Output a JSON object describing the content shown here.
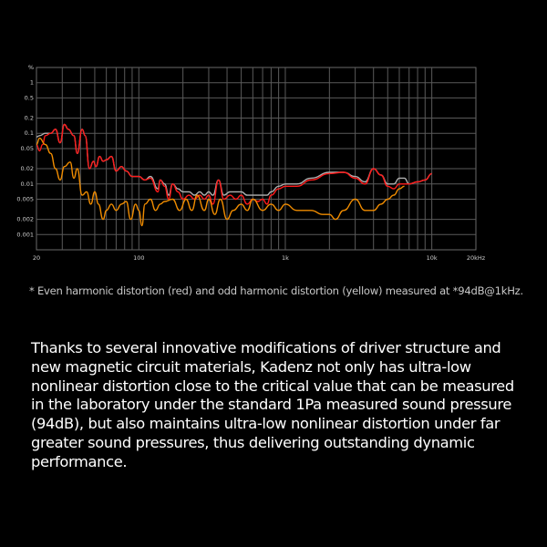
{
  "chart_data": {
    "type": "line",
    "title": "",
    "xlabel": "",
    "ylabel": "%",
    "x_scale": "log",
    "y_scale": "log",
    "xlim": [
      20,
      20000
    ],
    "ylim": [
      0.0005,
      2
    ],
    "grid": true,
    "x_ticks": [
      {
        "v": 20,
        "label": "20"
      },
      {
        "v": 100,
        "label": "100"
      },
      {
        "v": 1000,
        "label": "1k"
      },
      {
        "v": 10000,
        "label": "10k"
      },
      {
        "v": 20000,
        "label": "20kHz"
      }
    ],
    "y_ticks": [
      {
        "v": 1,
        "label": "1"
      },
      {
        "v": 0.5,
        "label": "0.5"
      },
      {
        "v": 0.2,
        "label": "0.2"
      },
      {
        "v": 0.1,
        "label": "0.1"
      },
      {
        "v": 0.05,
        "label": "0.05"
      },
      {
        "v": 0.02,
        "label": "0.02"
      },
      {
        "v": 0.01,
        "label": "0.01"
      },
      {
        "v": 0.005,
        "label": "0.005"
      },
      {
        "v": 0.002,
        "label": "0.002"
      },
      {
        "v": 0.001,
        "label": "0.001"
      }
    ],
    "y_unit_label": "%",
    "series": [
      {
        "color": "#b0b0b0",
        "x": [
          20,
          21,
          23,
          25,
          27,
          29,
          31,
          33,
          36,
          38,
          41,
          43,
          46,
          49,
          51,
          54,
          57,
          60,
          65,
          70,
          76,
          82,
          90,
          100,
          110,
          120,
          135,
          140,
          150,
          160,
          170,
          185,
          200,
          220,
          240,
          260,
          280,
          300,
          320,
          350,
          380,
          420,
          460,
          500,
          550,
          600,
          650,
          700,
          750,
          800,
          900,
          1000,
          1200,
          1500,
          2000,
          2500,
          3000,
          3500,
          4000,
          4500,
          5000,
          5500,
          6000,
          6500,
          7000,
          8000,
          9000,
          10000
        ],
        "y": [
          0.085,
          0.09,
          0.1,
          0.1,
          0.12,
          0.065,
          0.15,
          0.12,
          0.09,
          0.04,
          0.12,
          0.09,
          0.02,
          0.028,
          0.022,
          0.035,
          0.028,
          0.03,
          0.035,
          0.018,
          0.022,
          0.018,
          0.014,
          0.014,
          0.012,
          0.014,
          0.008,
          0.012,
          0.01,
          0.006,
          0.01,
          0.008,
          0.007,
          0.007,
          0.006,
          0.007,
          0.006,
          0.007,
          0.006,
          0.012,
          0.006,
          0.007,
          0.007,
          0.007,
          0.006,
          0.006,
          0.006,
          0.006,
          0.006,
          0.007,
          0.009,
          0.01,
          0.01,
          0.013,
          0.017,
          0.017,
          0.014,
          0.011,
          0.02,
          0.015,
          0.01,
          0.01,
          0.013,
          0.013,
          0.01,
          0.011,
          0.012,
          0.016
        ]
      },
      {
        "color": "#ff1a1a",
        "x": [
          20,
          21,
          22,
          23,
          25,
          27,
          29,
          31,
          33,
          36,
          38,
          41,
          43,
          46,
          49,
          51,
          54,
          57,
          60,
          65,
          70,
          76,
          82,
          90,
          100,
          110,
          120,
          135,
          140,
          150,
          160,
          170,
          185,
          200,
          220,
          240,
          260,
          280,
          300,
          320,
          350,
          380,
          420,
          460,
          500,
          550,
          600,
          650,
          700,
          750,
          800,
          900,
          1000,
          1200,
          1500,
          2000,
          2500,
          3000,
          3500,
          4000,
          4500,
          5000,
          5500,
          6000,
          7000,
          8000,
          9000,
          10000
        ],
        "y": [
          0.06,
          0.045,
          0.06,
          0.09,
          0.1,
          0.12,
          0.065,
          0.15,
          0.12,
          0.09,
          0.04,
          0.12,
          0.09,
          0.02,
          0.028,
          0.022,
          0.035,
          0.028,
          0.03,
          0.035,
          0.018,
          0.022,
          0.018,
          0.014,
          0.014,
          0.012,
          0.013,
          0.007,
          0.012,
          0.009,
          0.005,
          0.01,
          0.007,
          0.005,
          0.006,
          0.005,
          0.006,
          0.005,
          0.006,
          0.004,
          0.012,
          0.005,
          0.006,
          0.005,
          0.006,
          0.004,
          0.005,
          0.0045,
          0.005,
          0.004,
          0.006,
          0.008,
          0.009,
          0.009,
          0.012,
          0.016,
          0.017,
          0.013,
          0.01,
          0.02,
          0.015,
          0.009,
          0.008,
          0.01,
          0.01,
          0.011,
          0.012,
          0.016
        ]
      },
      {
        "color": "#f08c00",
        "x": [
          20,
          21,
          23,
          25,
          27,
          29,
          31,
          34,
          36,
          38,
          41,
          44,
          47,
          50,
          53,
          57,
          60,
          65,
          70,
          76,
          82,
          88,
          95,
          100,
          105,
          110,
          120,
          130,
          140,
          150,
          170,
          190,
          210,
          230,
          250,
          280,
          300,
          330,
          360,
          400,
          440,
          500,
          550,
          600,
          700,
          800,
          900,
          1000,
          1200,
          1500,
          1800,
          2000,
          2200,
          2500,
          3000,
          3500,
          4000,
          4500,
          5000,
          5500,
          6000,
          6500
        ],
        "y": [
          0.06,
          0.08,
          0.06,
          0.04,
          0.02,
          0.012,
          0.022,
          0.027,
          0.013,
          0.02,
          0.006,
          0.007,
          0.004,
          0.007,
          0.004,
          0.002,
          0.003,
          0.004,
          0.003,
          0.004,
          0.0045,
          0.002,
          0.004,
          0.003,
          0.0015,
          0.004,
          0.005,
          0.003,
          0.004,
          0.0045,
          0.005,
          0.003,
          0.005,
          0.003,
          0.006,
          0.003,
          0.005,
          0.0025,
          0.005,
          0.002,
          0.003,
          0.004,
          0.003,
          0.005,
          0.003,
          0.004,
          0.003,
          0.004,
          0.003,
          0.003,
          0.0025,
          0.0025,
          0.002,
          0.003,
          0.005,
          0.003,
          0.003,
          0.004,
          0.005,
          0.006,
          0.008,
          0.009
        ]
      }
    ]
  },
  "caption": "* Even harmonic distortion (red) and odd harmonic distortion (yellow) measured at *94dB@1kHz.",
  "paragraph_lines": [
    "Thanks to several innovative modifications of driver structure and",
    "new magnetic circuit materials, Kadenz not only has ultra-low",
    "nonlinear distortion close to the critical value that can be measured",
    "in the laboratory under the standard 1Pa measured sound pressure",
    "(94dB), but also maintains ultra-low nonlinear distortion under far",
    "greater sound pressures, thus delivering outstanding dynamic",
    "performance."
  ]
}
